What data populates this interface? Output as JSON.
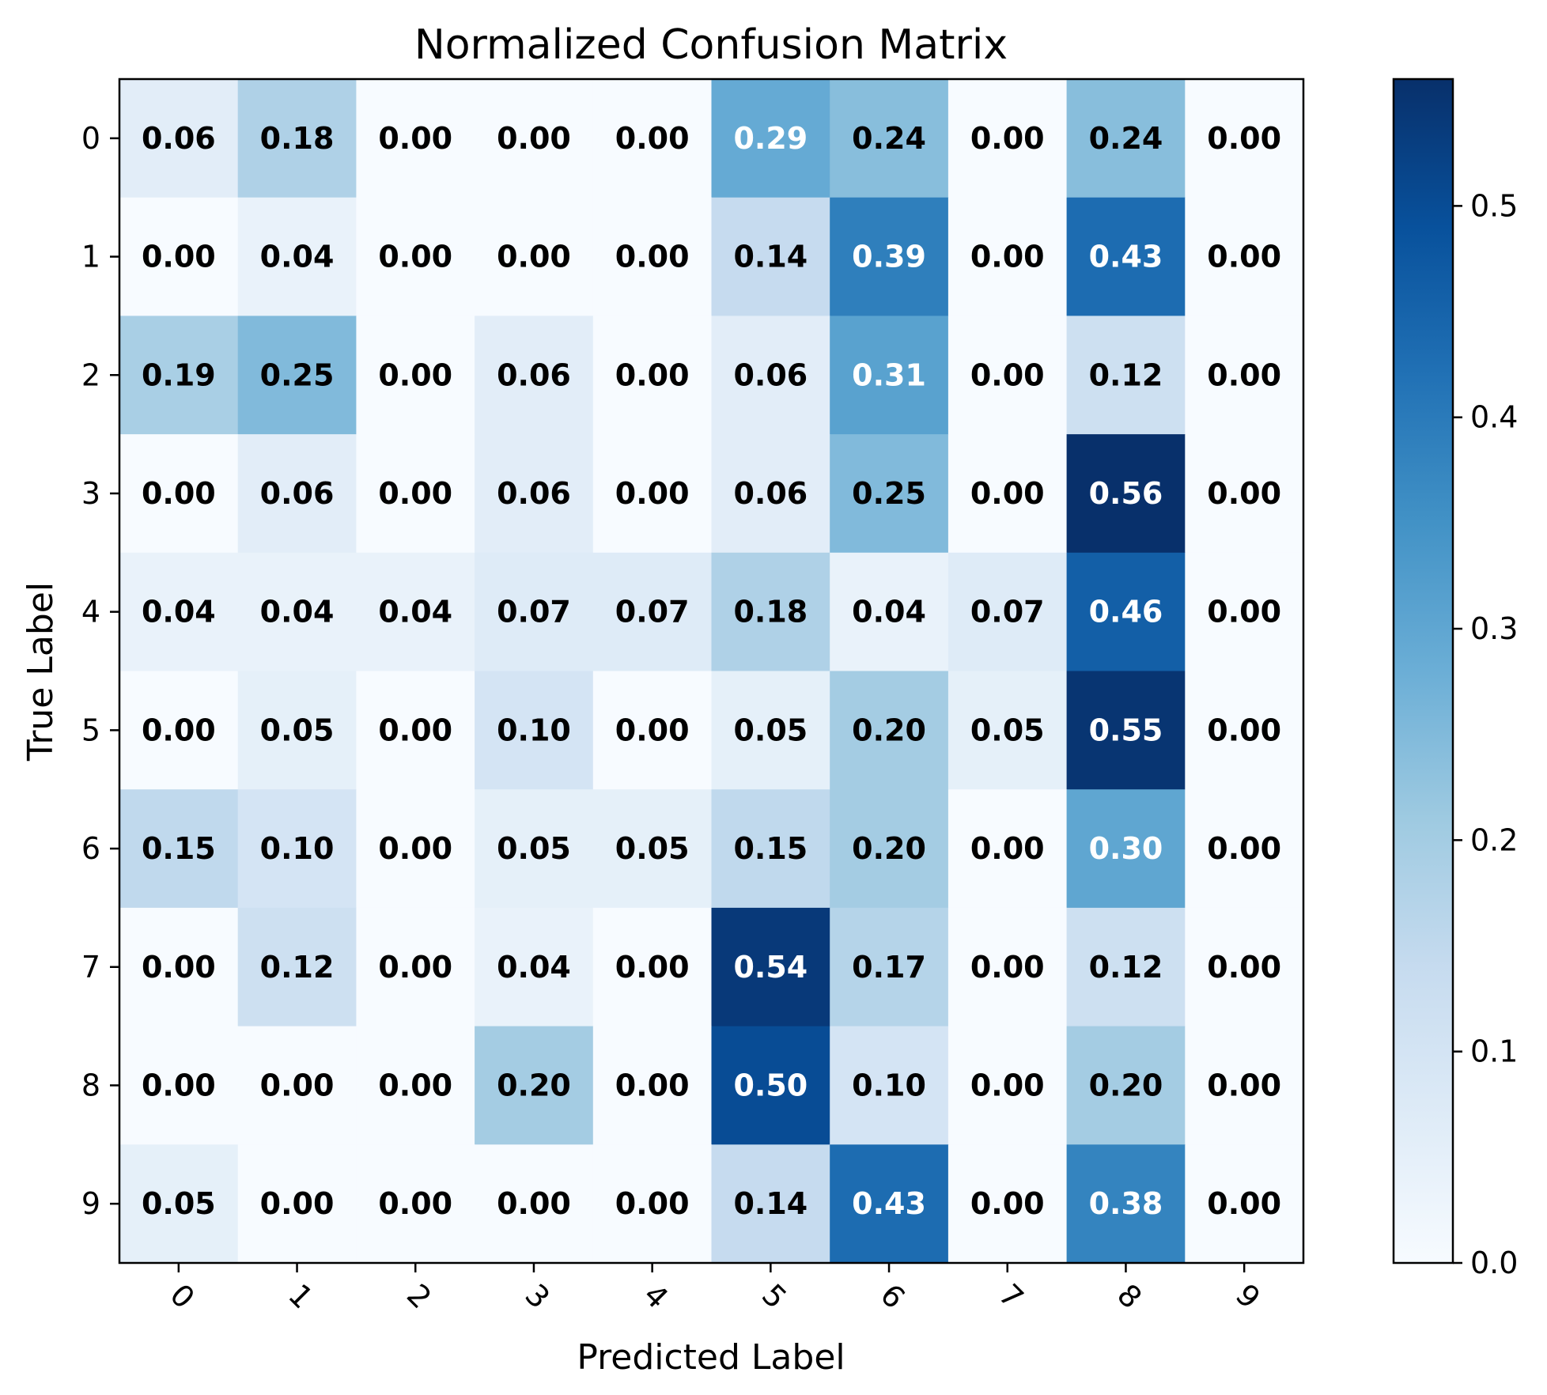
{
  "chart_data": {
    "type": "heatmap",
    "title": "Normalized Confusion Matrix",
    "xlabel": "Predicted Label",
    "ylabel": "True Label",
    "x_categories": [
      "0",
      "1",
      "2",
      "3",
      "4",
      "5",
      "6",
      "7",
      "8",
      "9"
    ],
    "y_categories": [
      "0",
      "1",
      "2",
      "3",
      "4",
      "5",
      "6",
      "7",
      "8",
      "9"
    ],
    "values": [
      [
        0.06,
        0.18,
        0.0,
        0.0,
        0.0,
        0.29,
        0.24,
        0.0,
        0.24,
        0.0
      ],
      [
        0.0,
        0.04,
        0.0,
        0.0,
        0.0,
        0.14,
        0.39,
        0.0,
        0.43,
        0.0
      ],
      [
        0.19,
        0.25,
        0.0,
        0.06,
        0.0,
        0.06,
        0.31,
        0.0,
        0.12,
        0.0
      ],
      [
        0.0,
        0.06,
        0.0,
        0.06,
        0.0,
        0.06,
        0.25,
        0.0,
        0.56,
        0.0
      ],
      [
        0.04,
        0.04,
        0.04,
        0.07,
        0.07,
        0.18,
        0.04,
        0.07,
        0.46,
        0.0
      ],
      [
        0.0,
        0.05,
        0.0,
        0.1,
        0.0,
        0.05,
        0.2,
        0.05,
        0.55,
        0.0
      ],
      [
        0.15,
        0.1,
        0.0,
        0.05,
        0.05,
        0.15,
        0.2,
        0.0,
        0.3,
        0.0
      ],
      [
        0.0,
        0.12,
        0.0,
        0.04,
        0.0,
        0.54,
        0.17,
        0.0,
        0.12,
        0.0
      ],
      [
        0.0,
        0.0,
        0.0,
        0.2,
        0.0,
        0.5,
        0.1,
        0.0,
        0.2,
        0.0
      ],
      [
        0.05,
        0.0,
        0.0,
        0.0,
        0.0,
        0.14,
        0.43,
        0.0,
        0.38,
        0.0
      ]
    ],
    "colormap": "Blues",
    "color_range": [
      0.0,
      0.56
    ],
    "colorbar_ticks": [
      "0.0",
      "0.1",
      "0.2",
      "0.3",
      "0.4",
      "0.5"
    ],
    "text_color_threshold": 0.28,
    "grid": false,
    "x_tick_rotation": 45,
    "colors": {
      "light_text": "#ffffff",
      "dark_text": "#000000"
    }
  }
}
